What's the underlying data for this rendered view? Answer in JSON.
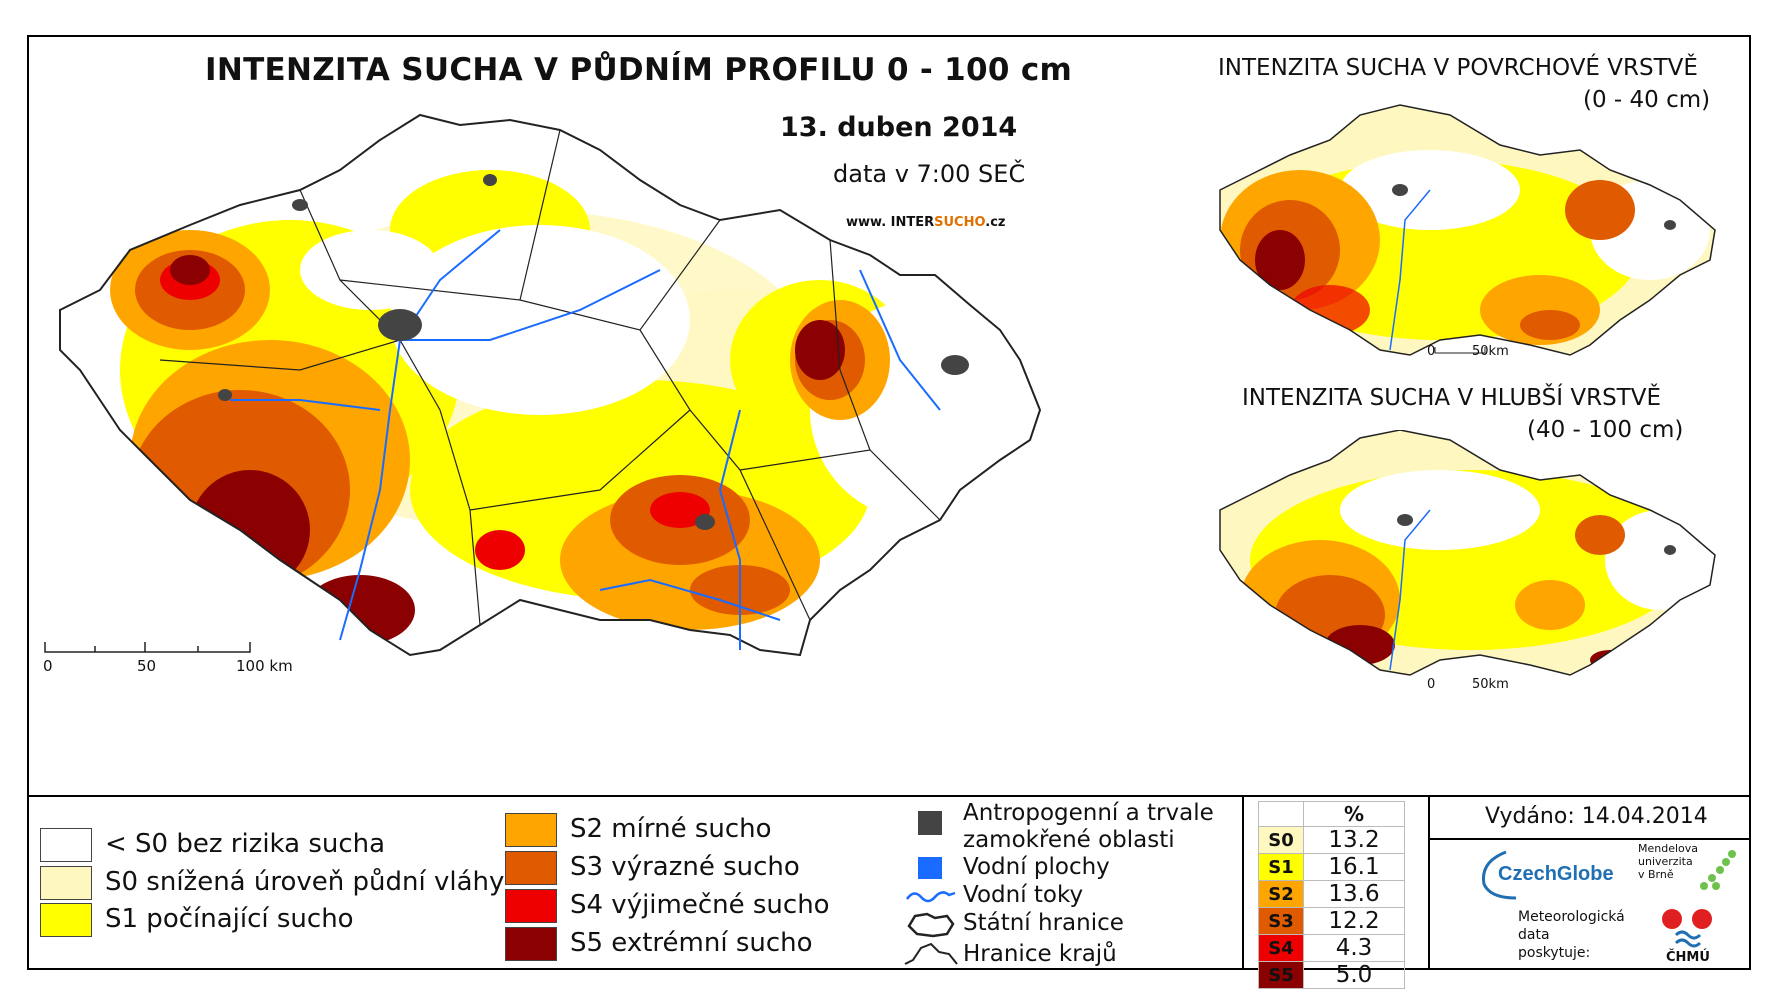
{
  "main_map": {
    "title": "INTENZITA SUCHA V PŮDNÍM PROFILU 0 - 100 cm",
    "date": "13. duben 2014",
    "time": "data v 7:00 SEČ",
    "website_prefix": "www. INTER",
    "website_accent": "SUCHO",
    "website_suffix": ".cz",
    "scale": {
      "s0": "0",
      "s1": "50",
      "s2": "100 km"
    }
  },
  "map_surface": {
    "title": "INTENZITA SUCHA V POVRCHOVÉ VRSTVĚ",
    "range": "(0 - 40 cm)",
    "scale": {
      "s0": "0",
      "s1": "50km"
    }
  },
  "map_deep": {
    "title": "INTENZITA SUCHA V HLUBŠÍ VRSTVĚ",
    "range": "(40 - 100 cm)",
    "scale": {
      "s0": "0",
      "s1": "50km"
    }
  },
  "legend": {
    "classes": [
      {
        "label": "< S0 bez rizika sucha",
        "color": "#ffffff"
      },
      {
        "label": "S0 snížená úroveň půdní vláhy",
        "color": "#fff7c0"
      },
      {
        "label": "S1 počínající sucho",
        "color": "#ffff00"
      },
      {
        "label": "S2 mírné sucho",
        "color": "#ffa500"
      },
      {
        "label": "S3 výrazné sucho",
        "color": "#e05a00"
      },
      {
        "label": "S4 výjimečné sucho",
        "color": "#ee0000"
      },
      {
        "label": "S5 extrémní sucho",
        "color": "#8b0000"
      }
    ],
    "other": {
      "anthropogenic": "Antropogenní a trvale zamokřené oblasti",
      "anthropogenic_l1": "Antropogenní a trvale",
      "anthropogenic_l2": "zamokřené oblasti",
      "water_bodies": "Vodní plochy",
      "rivers": "Vodní toky",
      "state_border": "Státní hranice",
      "region_border": "Hranice krajů",
      "colors": {
        "anthropogenic": "#444444",
        "water": "#1a6bff",
        "river": "#1a6bff"
      }
    }
  },
  "percent_table": {
    "header": "%",
    "rows": [
      {
        "cls": "S0",
        "value": "13.2",
        "color": "#fff7c0"
      },
      {
        "cls": "S1",
        "value": "16.1",
        "color": "#ffff00"
      },
      {
        "cls": "S2",
        "value": "13.6",
        "color": "#ffa500"
      },
      {
        "cls": "S3",
        "value": "12.2",
        "color": "#e05a00"
      },
      {
        "cls": "S4",
        "value": "4.3",
        "color": "#ee0000"
      },
      {
        "cls": "S5",
        "value": "5.0",
        "color": "#8b0000"
      }
    ]
  },
  "info": {
    "issued": "Vydáno: 14.04.2014",
    "czechglobe": "CzechGlobe",
    "mendel_l1": "Mendelova",
    "mendel_l2": "univerzita",
    "mendel_l3": "v Brně",
    "provided_l1": "Meteorologická",
    "provided_l2": "data",
    "provided_l3": "poskytuje:",
    "chmu": "ČHMÚ"
  }
}
